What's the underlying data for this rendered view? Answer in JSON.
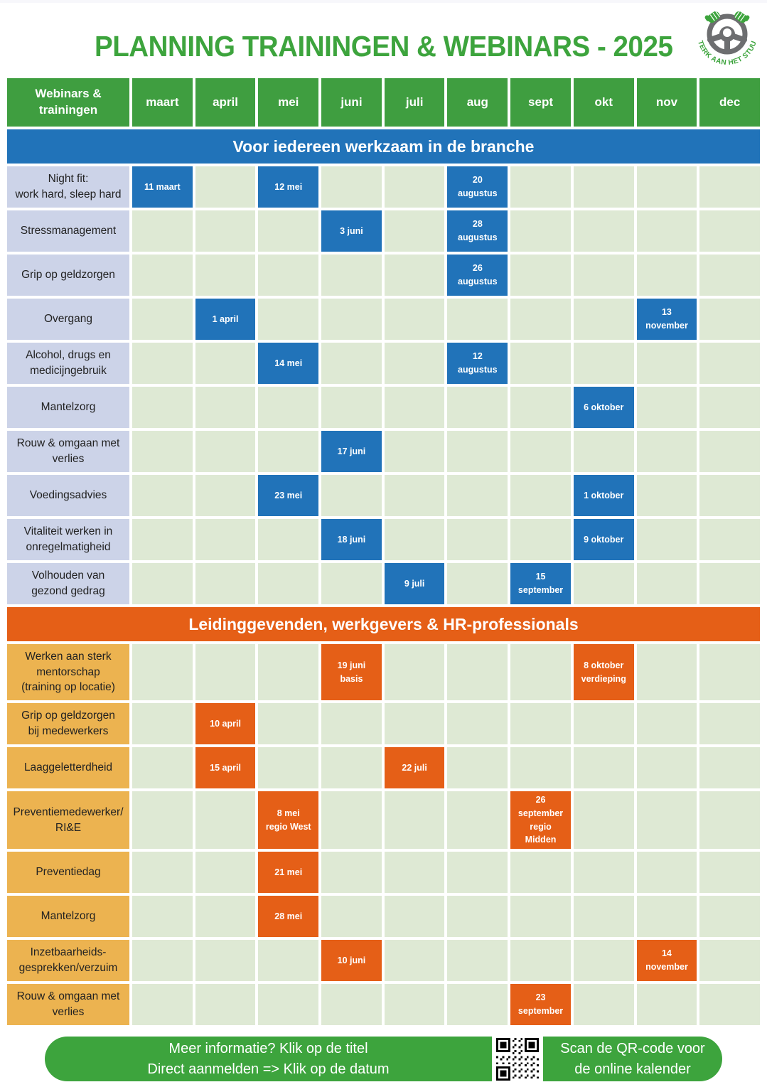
{
  "title": "PLANNING TRAININGEN & WEBINARS - 2025",
  "logo": {
    "text": "STERK AAN HET STUUR"
  },
  "table": {
    "corner": "Webinars &\ntrainingen",
    "months": [
      "maart",
      "april",
      "mei",
      "juni",
      "juli",
      "aug",
      "sept",
      "okt",
      "nov",
      "dec"
    ],
    "sections": [
      {
        "banner": "Voor iedereen werkzaam in de branche",
        "theme": "blue",
        "rows": [
          {
            "label": "Night fit:\nwork hard, sleep hard",
            "events": [
              {
                "month": "maart",
                "text": "11 maart"
              },
              {
                "month": "mei",
                "text": "12 mei"
              },
              {
                "month": "aug",
                "text": "20\naugustus"
              }
            ]
          },
          {
            "label": "Stressmanagement",
            "events": [
              {
                "month": "juni",
                "text": "3 juni"
              },
              {
                "month": "aug",
                "text": "28\naugustus"
              }
            ]
          },
          {
            "label": "Grip op geldzorgen",
            "events": [
              {
                "month": "aug",
                "text": "26\naugustus"
              }
            ]
          },
          {
            "label": "Overgang",
            "events": [
              {
                "month": "april",
                "text": "1 april"
              },
              {
                "month": "nov",
                "text": "13\nnovember"
              }
            ]
          },
          {
            "label": "Alcohol, drugs en\nmedicijngebruik",
            "events": [
              {
                "month": "mei",
                "text": "14 mei"
              },
              {
                "month": "aug",
                "text": "12\naugustus"
              }
            ]
          },
          {
            "label": "Mantelzorg",
            "events": [
              {
                "month": "okt",
                "text": "6 oktober"
              }
            ]
          },
          {
            "label": "Rouw & omgaan met\nverlies",
            "events": [
              {
                "month": "juni",
                "text": "17 juni"
              }
            ]
          },
          {
            "label": "Voedingsadvies",
            "events": [
              {
                "month": "mei",
                "text": "23 mei"
              },
              {
                "month": "okt",
                "text": "1 oktober"
              }
            ]
          },
          {
            "label": "Vitaliteit werken in\nonregelmatigheid",
            "events": [
              {
                "month": "juni",
                "text": "18 juni"
              },
              {
                "month": "okt",
                "text": "9 oktober"
              }
            ]
          },
          {
            "label": "Volhouden van\ngezond gedrag",
            "events": [
              {
                "month": "juli",
                "text": "9 juli"
              },
              {
                "month": "sept",
                "text": "15\nseptember"
              }
            ]
          }
        ]
      },
      {
        "banner": "Leidinggevenden, werkgevers & HR-professionals",
        "theme": "orange",
        "rows": [
          {
            "label": "Werken aan sterk\nmentorschap\n(training op locatie)",
            "events": [
              {
                "month": "juni",
                "text": "19 juni\nbasis"
              },
              {
                "month": "okt",
                "text": "8 oktober\nverdieping"
              }
            ]
          },
          {
            "label": "Grip op geldzorgen\nbij medewerkers",
            "events": [
              {
                "month": "april",
                "text": "10 april"
              }
            ]
          },
          {
            "label": "Laaggeletterdheid",
            "events": [
              {
                "month": "april",
                "text": "15 april"
              },
              {
                "month": "juli",
                "text": "22 juli"
              }
            ]
          },
          {
            "label": "Preventiemedewerker/\nRI&E",
            "events": [
              {
                "month": "mei",
                "text": "8 mei\nregio West"
              },
              {
                "month": "sept",
                "text": "26\nseptember\nregio\nMidden"
              }
            ]
          },
          {
            "label": "Preventiedag",
            "events": [
              {
                "month": "mei",
                "text": "21 mei"
              }
            ]
          },
          {
            "label": "Mantelzorg",
            "events": [
              {
                "month": "mei",
                "text": "28 mei"
              }
            ]
          },
          {
            "label": "Inzetbaarheids-\ngesprekken/verzuim",
            "events": [
              {
                "month": "juni",
                "text": "10 juni"
              },
              {
                "month": "nov",
                "text": "14\nnovember"
              }
            ]
          },
          {
            "label": "Rouw & omgaan met\nverlies",
            "events": [
              {
                "month": "sept",
                "text": "23\nseptember"
              }
            ]
          }
        ]
      }
    ]
  },
  "footer": {
    "info_line1": "Meer informatie? Klik op de titel",
    "info_line2": "Direct aanmelden => Klik op de datum",
    "qr_line1": "Scan de QR-code voor",
    "qr_line2": "de online kalender"
  },
  "colors": {
    "green": "#3da43d",
    "green_dark": "#3f9e40",
    "blue": "#2173b9",
    "orange": "#e55f17",
    "amber": "#ecb350",
    "lavender": "#ccd3e8",
    "sage": "#dee9d4"
  }
}
